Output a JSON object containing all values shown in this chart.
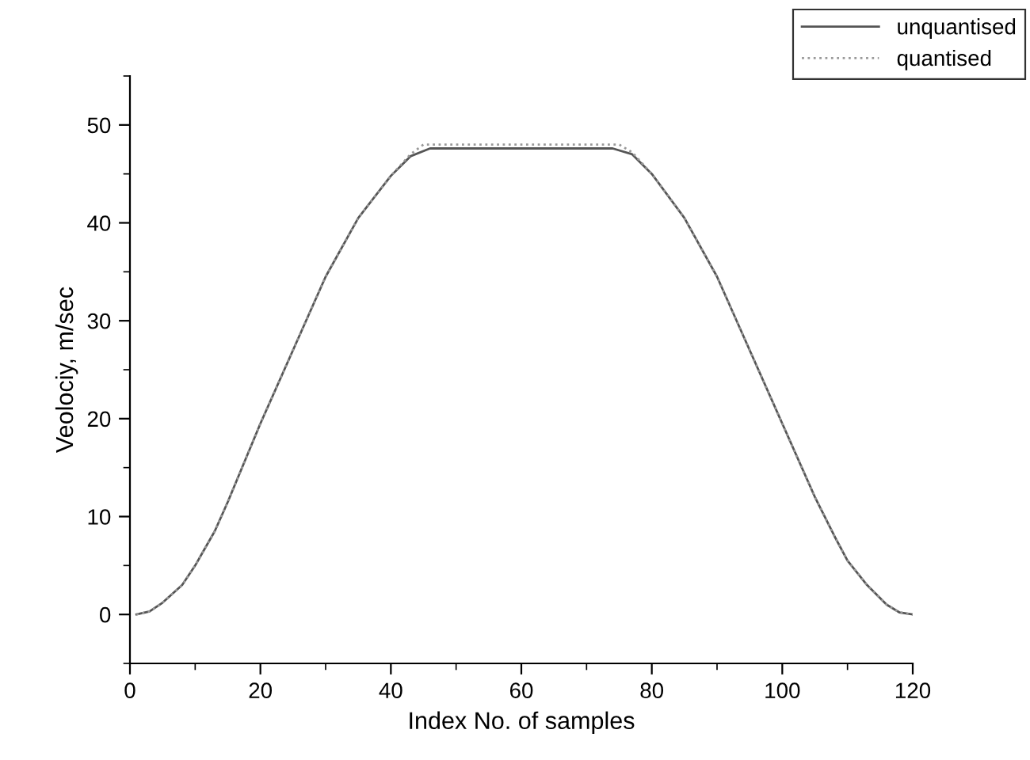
{
  "chart_data": {
    "type": "line",
    "xlabel": "Index No. of samples",
    "ylabel": "Veolociy, m/sec",
    "xlim": [
      0,
      120
    ],
    "xticks": [
      0,
      20,
      40,
      60,
      80,
      100,
      120
    ],
    "ylim": [
      -5,
      55
    ],
    "yticks": [
      0,
      10,
      20,
      30,
      40,
      50
    ],
    "grid": false,
    "legend": "top right",
    "marker": "none",
    "series": [
      {
        "name": "unquantised",
        "color": "#555555",
        "line_style": "solid",
        "x": [
          1,
          3,
          5,
          8,
          10,
          13,
          15,
          20,
          25,
          30,
          35,
          40,
          43,
          46,
          74,
          77,
          80,
          85,
          90,
          95,
          100,
          105,
          108,
          110,
          113,
          116,
          118,
          120
        ],
        "values": [
          0,
          0.3,
          1.2,
          3,
          5,
          8.5,
          11.5,
          19.5,
          27,
          34.5,
          40.5,
          44.8,
          46.8,
          47.6,
          47.6,
          47,
          45,
          40.5,
          34.5,
          27,
          19.5,
          12,
          8,
          5.5,
          3,
          1,
          0.2,
          0
        ]
      },
      {
        "name": "quantised",
        "color": "#999999",
        "line_style": "dotted",
        "x": [
          1,
          3,
          5,
          8,
          10,
          13,
          15,
          20,
          25,
          30,
          35,
          40,
          43,
          45,
          75,
          77,
          80,
          85,
          90,
          95,
          100,
          105,
          108,
          110,
          113,
          116,
          118,
          120
        ],
        "values": [
          0,
          0.3,
          1.2,
          3,
          5,
          8.5,
          11.5,
          19.5,
          27,
          34.5,
          40.5,
          44.8,
          47,
          48,
          48,
          47.2,
          45,
          40.5,
          34.5,
          27,
          19.5,
          12,
          8,
          5.5,
          3,
          1,
          0.2,
          0
        ]
      }
    ]
  }
}
